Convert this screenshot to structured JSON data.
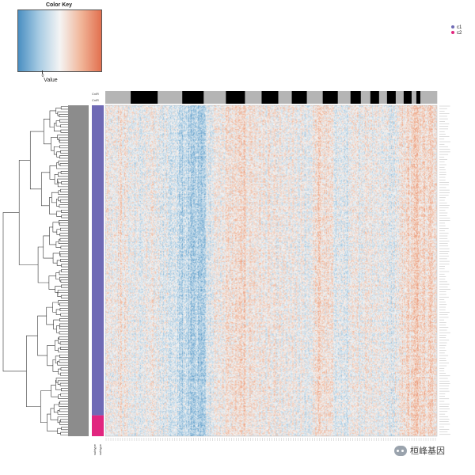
{
  "color_key": {
    "title": "Color Key",
    "zero_label": "0",
    "value_label": "Value",
    "colors": [
      "#4a8fc2",
      "#a7cbe3",
      "#f4f4f4",
      "#f1b79b",
      "#e2704f"
    ]
  },
  "legend": [
    {
      "label": "c1",
      "color": "#6f6ab5"
    },
    {
      "label": "c2",
      "color": "#e1267f"
    }
  ],
  "column_annotation": {
    "labels": [
      "CnlR",
      "CnlR"
    ],
    "blocks": [
      {
        "color": "#b5b5b5",
        "span": 32
      },
      {
        "color": "#000000",
        "span": 34
      },
      {
        "color": "#b5b5b5",
        "span": 31
      },
      {
        "color": "#000000",
        "span": 27
      },
      {
        "color": "#b5b5b5",
        "span": 28
      },
      {
        "color": "#000000",
        "span": 24
      },
      {
        "color": "#b5b5b5",
        "span": 21
      },
      {
        "color": "#000000",
        "span": 21
      },
      {
        "color": "#b5b5b5",
        "span": 17
      },
      {
        "color": "#000000",
        "span": 19
      },
      {
        "color": "#b5b5b5",
        "span": 20
      },
      {
        "color": "#000000",
        "span": 19
      },
      {
        "color": "#b5b5b5",
        "span": 16
      },
      {
        "color": "#000000",
        "span": 13
      },
      {
        "color": "#b5b5b5",
        "span": 12
      },
      {
        "color": "#000000",
        "span": 11
      },
      {
        "color": "#b5b5b5",
        "span": 10
      },
      {
        "color": "#000000",
        "span": 11
      },
      {
        "color": "#b5b5b5",
        "span": 10
      },
      {
        "color": "#000000",
        "span": 10
      },
      {
        "color": "#b5b5b5",
        "span": 6
      },
      {
        "color": "#000000",
        "span": 5
      },
      {
        "color": "#b5b5b5",
        "span": 21
      }
    ]
  },
  "row_annotation": {
    "labels": [
      "subtype",
      "subtype"
    ],
    "groups": [
      {
        "label": "c1",
        "color": "#6f6ab5",
        "rows": 356
      },
      {
        "label": "c2",
        "color": "#e1267f",
        "rows": 24
      }
    ]
  },
  "watermark": "桓峰基因",
  "chart_data": {
    "type": "heatmap",
    "title": "",
    "xlabel": "",
    "ylabel": "",
    "value_scale": "diverging, centered at 0",
    "palette": [
      "#4a8fc2",
      "#a7cbe3",
      "#f4f4f4",
      "#f1b79b",
      "#e2704f"
    ],
    "dendrogram": "rows",
    "n_rows": 380,
    "n_cols": 418,
    "column_profile": [
      {
        "col": 0,
        "mean": 0.05
      },
      {
        "col": 18,
        "mean": 0.2
      },
      {
        "col": 40,
        "mean": -0.15
      },
      {
        "col": 68,
        "mean": 0.0
      },
      {
        "col": 95,
        "mean": -0.55
      },
      {
        "col": 120,
        "mean": -0.7
      },
      {
        "col": 140,
        "mean": 0.1
      },
      {
        "col": 175,
        "mean": 0.3
      },
      {
        "col": 210,
        "mean": 0.0
      },
      {
        "col": 255,
        "mean": -0.1
      },
      {
        "col": 270,
        "mean": 0.35
      },
      {
        "col": 300,
        "mean": -0.25
      },
      {
        "col": 330,
        "mean": 0.15
      },
      {
        "col": 360,
        "mean": -0.15
      },
      {
        "col": 380,
        "mean": 0.35
      },
      {
        "col": 400,
        "mean": 0.55
      },
      {
        "col": 417,
        "mean": 0.3
      }
    ]
  }
}
